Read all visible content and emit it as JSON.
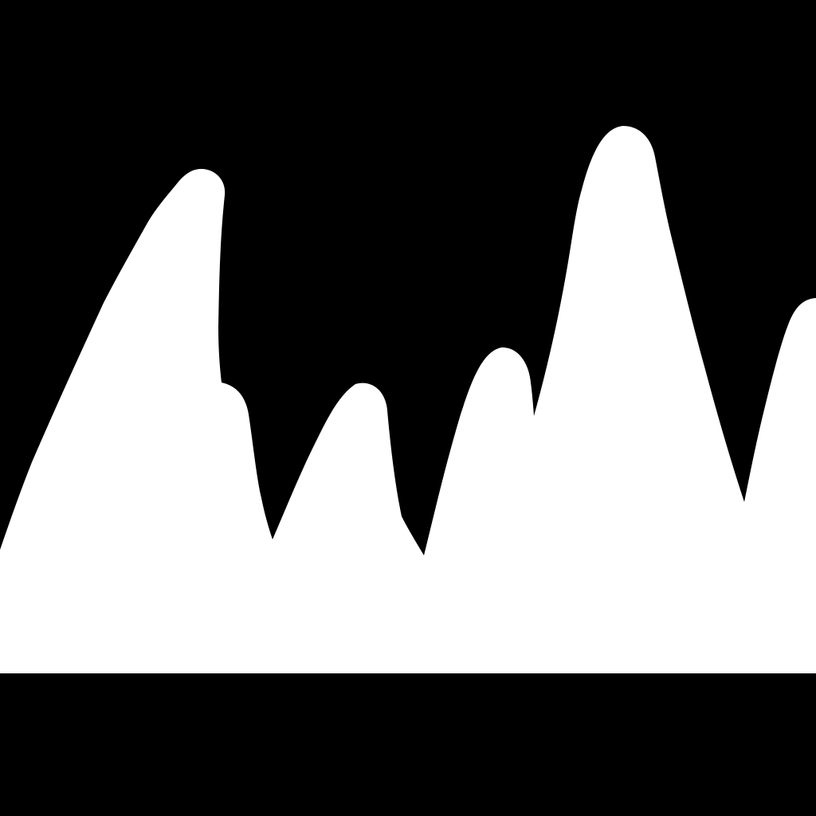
{
  "background": "#000000",
  "foreground": "#ffffff",
  "shape": "silhouette of jagged mountain peaks on a solid band"
}
